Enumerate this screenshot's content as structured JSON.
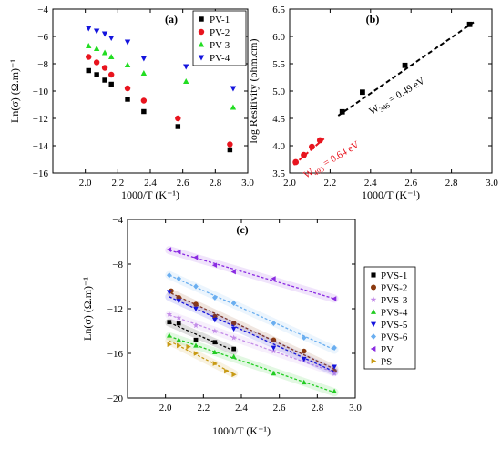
{
  "chart_data": [
    {
      "id": "a",
      "type": "scatter",
      "panel_label": "(a)",
      "xlabel": "1000/T (K⁻¹)",
      "ylabel": "Ln(σ) (Ω.m)⁻¹",
      "xlim": [
        1.8,
        3.0
      ],
      "ylim": [
        -16,
        -4
      ],
      "xticks": [
        2.0,
        2.2,
        2.4,
        2.6,
        2.8,
        3.0
      ],
      "yticks": [
        -16,
        -14,
        -12,
        -10,
        -8,
        -6,
        -4
      ],
      "xtick_labels": [
        "2.0",
        "2.2",
        "2.4",
        "2.6",
        "2.8",
        "3.0"
      ],
      "ytick_labels": [
        "−16",
        "−14",
        "−12",
        "−10",
        "−8",
        "−6",
        "−4"
      ],
      "legend_position": "top-right",
      "series": [
        {
          "name": "PV-1",
          "color": "#000000",
          "marker": "square",
          "x": [
            2.02,
            2.07,
            2.12,
            2.16,
            2.26,
            2.36,
            2.57,
            2.89
          ],
          "y": [
            -8.5,
            -8.8,
            -9.2,
            -9.5,
            -10.6,
            -11.5,
            -12.6,
            -14.3
          ]
        },
        {
          "name": "PV-2",
          "color": "#e8141e",
          "marker": "circle",
          "x": [
            2.02,
            2.07,
            2.12,
            2.16,
            2.26,
            2.36,
            2.57,
            2.89
          ],
          "y": [
            -7.5,
            -7.9,
            -8.3,
            -8.8,
            -9.8,
            -10.7,
            -12.0,
            -13.9
          ]
        },
        {
          "name": "PV-3",
          "color": "#22dd22",
          "marker": "triangle-up",
          "x": [
            2.02,
            2.07,
            2.12,
            2.16,
            2.26,
            2.36,
            2.62,
            2.91
          ],
          "y": [
            -6.7,
            -6.9,
            -7.2,
            -7.5,
            -8.1,
            -8.7,
            -9.3,
            -11.2
          ]
        },
        {
          "name": "PV-4",
          "color": "#1414dd",
          "marker": "triangle-down",
          "x": [
            2.02,
            2.07,
            2.12,
            2.16,
            2.26,
            2.36,
            2.62,
            2.91
          ],
          "y": [
            -5.4,
            -5.6,
            -5.8,
            -6.1,
            -6.4,
            -7.6,
            -8.2,
            -9.8
          ]
        }
      ]
    },
    {
      "id": "b",
      "type": "scatter",
      "panel_label": "(b)",
      "xlabel": "1000/T (K⁻¹)",
      "ylabel": "log Resitivity (ohm.cm)",
      "xlim": [
        2.0,
        3.0
      ],
      "ylim": [
        3.5,
        6.5
      ],
      "xticks": [
        2.0,
        2.2,
        2.4,
        2.6,
        2.8,
        3.0
      ],
      "yticks": [
        3.5,
        4.0,
        4.5,
        5.0,
        5.5,
        6.0,
        6.5
      ],
      "xtick_labels": [
        "2.0",
        "2.2",
        "2.4",
        "2.6",
        "2.8",
        "3.0"
      ],
      "ytick_labels": [
        "3.5",
        "4.0",
        "4.5",
        "5.0",
        "5.5",
        "6.0",
        "6.5"
      ],
      "series": [
        {
          "color": "#e8141e",
          "marker": "circle",
          "x": [
            2.03,
            2.07,
            2.11,
            2.15
          ],
          "y": [
            3.7,
            3.83,
            3.98,
            4.1
          ]
        },
        {
          "color": "#000000",
          "marker": "square",
          "x": [
            2.26,
            2.36,
            2.57,
            2.89
          ],
          "y": [
            4.62,
            4.98,
            5.47,
            6.22
          ]
        }
      ],
      "fits": [
        {
          "color": "#e8141e",
          "x": [
            2.02,
            2.17
          ],
          "y": [
            3.65,
            4.13
          ]
        },
        {
          "color": "#000000",
          "x": [
            2.24,
            2.91
          ],
          "y": [
            4.55,
            6.26
          ]
        }
      ],
      "annotations": [
        {
          "base": "W",
          "sub": "493",
          "rest": " = 0.64 eV",
          "color": "#e8141e"
        },
        {
          "base": "W",
          "sub": "346",
          "rest": " = 0.49 eV",
          "color": "#000000"
        }
      ]
    },
    {
      "id": "c",
      "type": "scatter",
      "panel_label": "(c)",
      "xlabel": "1000/T (K⁻¹)",
      "ylabel": "Ln(σ) (Ω.m)⁻¹",
      "xlim": [
        1.8,
        3.0
      ],
      "ylim": [
        -20,
        -4
      ],
      "xticks": [
        2.0,
        2.2,
        2.4,
        2.6,
        2.8,
        3.0
      ],
      "yticks": [
        -20,
        -16,
        -12,
        -8,
        -4
      ],
      "xtick_labels": [
        "2.0",
        "2.2",
        "2.4",
        "2.6",
        "2.8",
        "3.0"
      ],
      "ytick_labels": [
        "−20",
        "−16",
        "−12",
        "−8",
        "−4"
      ],
      "legend_position": "right-outside",
      "series": [
        {
          "name": "PVS-1",
          "color": "#000000",
          "marker": "square",
          "x": [
            2.02,
            2.07,
            2.16,
            2.26,
            2.36
          ],
          "y": [
            -13.2,
            -13.3,
            -14.8,
            -15.0,
            -15.6
          ]
        },
        {
          "name": "PVS-2",
          "color": "#8b3a0f",
          "marker": "circle",
          "x": [
            2.03,
            2.07,
            2.16,
            2.26,
            2.36,
            2.57,
            2.73,
            2.89
          ],
          "y": [
            -10.4,
            -11.0,
            -11.6,
            -12.7,
            -13.3,
            -14.8,
            -15.8,
            -17.6
          ]
        },
        {
          "name": "PVS-3",
          "color": "#c38ce8",
          "marker": "star",
          "x": [
            2.02,
            2.07,
            2.16,
            2.26,
            2.36,
            2.57,
            2.73,
            2.89
          ],
          "y": [
            -12.5,
            -12.8,
            -13.5,
            -14.0,
            -14.6,
            -15.8,
            -16.6,
            -17.8
          ]
        },
        {
          "name": "PVS-4",
          "color": "#22cc22",
          "marker": "triangle-up",
          "x": [
            2.02,
            2.07,
            2.16,
            2.26,
            2.36,
            2.57,
            2.73,
            2.89
          ],
          "y": [
            -14.4,
            -14.8,
            -15.3,
            -15.9,
            -16.3,
            -17.8,
            -18.6,
            -19.4
          ]
        },
        {
          "name": "PVS-5",
          "color": "#1414dd",
          "marker": "triangle-down",
          "x": [
            2.02,
            2.07,
            2.16,
            2.26,
            2.36,
            2.57,
            2.73,
            2.89
          ],
          "y": [
            -10.5,
            -11.3,
            -12.0,
            -13.0,
            -13.8,
            -15.5,
            -16.5,
            -17.2
          ]
        },
        {
          "name": "PVS-6",
          "color": "#6aaef0",
          "marker": "diamond",
          "x": [
            2.02,
            2.07,
            2.16,
            2.26,
            2.36,
            2.57,
            2.73,
            2.89
          ],
          "y": [
            -9.0,
            -9.3,
            -10.0,
            -11.0,
            -11.5,
            -13.3,
            -14.6,
            -15.5
          ]
        },
        {
          "name": "PV",
          "color": "#8a2be2",
          "marker": "triangle-left",
          "x": [
            2.02,
            2.07,
            2.16,
            2.26,
            2.36,
            2.57,
            2.89
          ],
          "y": [
            -6.7,
            -6.9,
            -7.4,
            -8.1,
            -8.7,
            -9.3,
            -11.1
          ]
        },
        {
          "name": "PS",
          "color": "#c89a14",
          "marker": "triangle-right",
          "x": [
            2.02,
            2.07,
            2.12,
            2.16,
            2.26,
            2.32,
            2.36
          ],
          "y": [
            -15.2,
            -15.3,
            -15.4,
            -16.0,
            -16.9,
            -17.6,
            -17.9
          ]
        }
      ]
    }
  ]
}
